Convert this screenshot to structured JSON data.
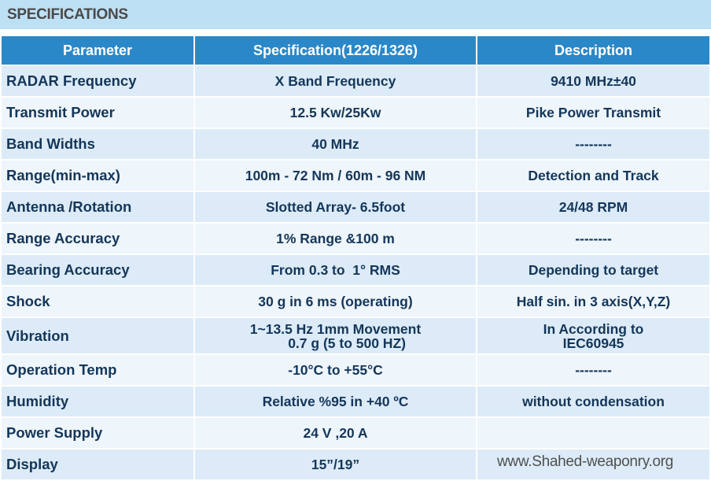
{
  "title": "SPECIFICATIONS",
  "headers": [
    "Parameter",
    "Specification(1226/1326)",
    "Description"
  ],
  "rows": [
    [
      "RADAR Frequency",
      "X Band Frequency",
      "9410 MHz±40"
    ],
    [
      "Transmit Power",
      "12.5 Kw/25Kw",
      "Pike Power Transmit"
    ],
    [
      "Band Widths",
      "40 MHz",
      "--------"
    ],
    [
      "Range(min-max)",
      "100m - 72 Nm / 60m - 96 NM",
      "Detection and Track"
    ],
    [
      "Antenna /Rotation",
      "Slotted Array- 6.5foot",
      "24/48 RPM"
    ],
    [
      "Range Accuracy",
      "1% Range &100 m",
      "--------"
    ],
    [
      "Bearing Accuracy",
      "From 0.3 to  1° RMS",
      "Depending to target"
    ],
    [
      "Shock",
      "30 g in 6 ms (operating)",
      "Half sin. in 3 axis(X,Y,Z)"
    ],
    [
      "Vibration",
      "1~13.5 Hz 1mm Movement\n      0.7 g (5 to 500 HZ)",
      "In According to\nIEC60945"
    ],
    [
      "Operation Temp",
      "-10°C to +55°C",
      "--------"
    ],
    [
      "Humidity",
      "Relative %95 in +40 ºC",
      "without condensation"
    ],
    [
      "Power Supply",
      "24 V ,20 A",
      ""
    ],
    [
      "Display",
      "15”/19”",
      ""
    ]
  ],
  "watermark": "www.Shahed-weaponry.org"
}
